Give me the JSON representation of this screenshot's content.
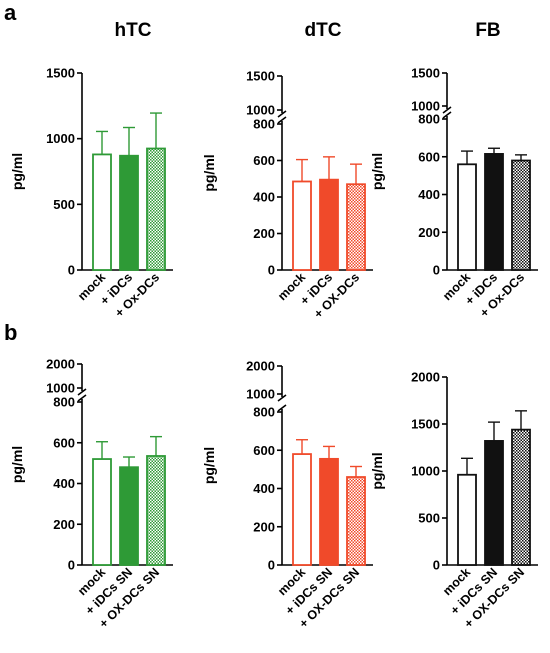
{
  "panels": [
    {
      "letter": "a"
    },
    {
      "letter": "b"
    }
  ],
  "chart_data": [
    {
      "type": "bar",
      "panel": "a",
      "title": "hTC",
      "ylabel": "pg/ml",
      "categories": [
        "mock",
        "+ iDCs",
        "+ Ox-DCs"
      ],
      "values": [
        880,
        870,
        925
      ],
      "errors": [
        175,
        215,
        270
      ],
      "ylim": [
        0,
        1500
      ],
      "ticks": [
        {
          "v": 0,
          "label": "0"
        },
        {
          "v": 500,
          "label": "500"
        },
        {
          "v": 1000,
          "label": "1000"
        },
        {
          "v": 1500,
          "label": "1500"
        }
      ],
      "color": "#2e9a36",
      "fills": [
        "none",
        "solid",
        "hatched"
      ]
    },
    {
      "type": "bar",
      "panel": "a",
      "title": "dTC",
      "ylabel": "pg/ml",
      "categories": [
        "mock",
        "+ iDCs",
        "+ OX-DCs"
      ],
      "values": [
        485,
        495,
        470
      ],
      "errors": [
        120,
        125,
        110
      ],
      "ylim": [
        0,
        1500
      ],
      "axis_break": [
        800,
        1000
      ],
      "ticks": [
        {
          "v": 0,
          "label": "0"
        },
        {
          "v": 200,
          "label": "200"
        },
        {
          "v": 400,
          "label": "400"
        },
        {
          "v": 600,
          "label": "600"
        },
        {
          "v": 800,
          "label": "800"
        },
        {
          "v": 1000,
          "label": "1000"
        },
        {
          "v": 1500,
          "label": "1500"
        }
      ],
      "color": "#f04a2a",
      "fills": [
        "none",
        "solid",
        "hatched"
      ]
    },
    {
      "type": "bar",
      "panel": "a",
      "title": "FB",
      "ylabel": "pg/ml",
      "categories": [
        "mock",
        "+ iDCs",
        "+ Ox-DCs"
      ],
      "values": [
        560,
        615,
        580
      ],
      "errors": [
        70,
        30,
        30
      ],
      "ylim": [
        0,
        1500
      ],
      "axis_break": [
        800,
        1000
      ],
      "ticks": [
        {
          "v": 0,
          "label": "0"
        },
        {
          "v": 200,
          "label": "200"
        },
        {
          "v": 400,
          "label": "400"
        },
        {
          "v": 600,
          "label": "600"
        },
        {
          "v": 800,
          "label": "800"
        },
        {
          "v": 1000,
          "label": "1000"
        },
        {
          "v": 1500,
          "label": "1500"
        }
      ],
      "color": "#111111",
      "fills": [
        "none",
        "solid",
        "hatched"
      ]
    },
    {
      "type": "bar",
      "panel": "b",
      "title": "",
      "ylabel": "pg/ml",
      "categories": [
        "mock",
        "+ iDCs SN",
        "+ OX-DCs SN"
      ],
      "values": [
        520,
        480,
        535
      ],
      "errors": [
        85,
        50,
        95
      ],
      "ylim": [
        0,
        2000
      ],
      "axis_break": [
        800,
        1000
      ],
      "ticks": [
        {
          "v": 0,
          "label": "0"
        },
        {
          "v": 200,
          "label": "200"
        },
        {
          "v": 400,
          "label": "400"
        },
        {
          "v": 600,
          "label": "600"
        },
        {
          "v": 800,
          "label": "800"
        },
        {
          "v": 1000,
          "label": "1000"
        },
        {
          "v": 2000,
          "label": "2000"
        }
      ],
      "color": "#2e9a36",
      "fills": [
        "none",
        "solid",
        "hatched"
      ]
    },
    {
      "type": "bar",
      "panel": "b",
      "title": "",
      "ylabel": "pg/ml",
      "categories": [
        "mock",
        "+ iDCs SN",
        "+ OX-DCs SN"
      ],
      "values": [
        580,
        555,
        460
      ],
      "errors": [
        75,
        65,
        55
      ],
      "ylim": [
        0,
        2000
      ],
      "axis_break": [
        800,
        1000
      ],
      "ticks": [
        {
          "v": 0,
          "label": "0"
        },
        {
          "v": 200,
          "label": "200"
        },
        {
          "v": 400,
          "label": "400"
        },
        {
          "v": 600,
          "label": "600"
        },
        {
          "v": 800,
          "label": "800"
        },
        {
          "v": 1000,
          "label": "1000"
        },
        {
          "v": 2000,
          "label": "2000"
        }
      ],
      "color": "#f04a2a",
      "fills": [
        "none",
        "solid",
        "hatched"
      ]
    },
    {
      "type": "bar",
      "panel": "b",
      "title": "",
      "ylabel": "pg/ml",
      "categories": [
        "mock",
        "+ iDCs SN",
        "+ OX-DCs SN"
      ],
      "values": [
        960,
        1320,
        1440
      ],
      "errors": [
        175,
        200,
        200
      ],
      "ylim": [
        0,
        2000
      ],
      "ticks": [
        {
          "v": 0,
          "label": "0"
        },
        {
          "v": 500,
          "label": "500"
        },
        {
          "v": 1000,
          "label": "1000"
        },
        {
          "v": 1500,
          "label": "1500"
        },
        {
          "v": 2000,
          "label": "2000"
        }
      ],
      "color": "#111111",
      "fills": [
        "none",
        "solid",
        "hatched"
      ]
    }
  ]
}
